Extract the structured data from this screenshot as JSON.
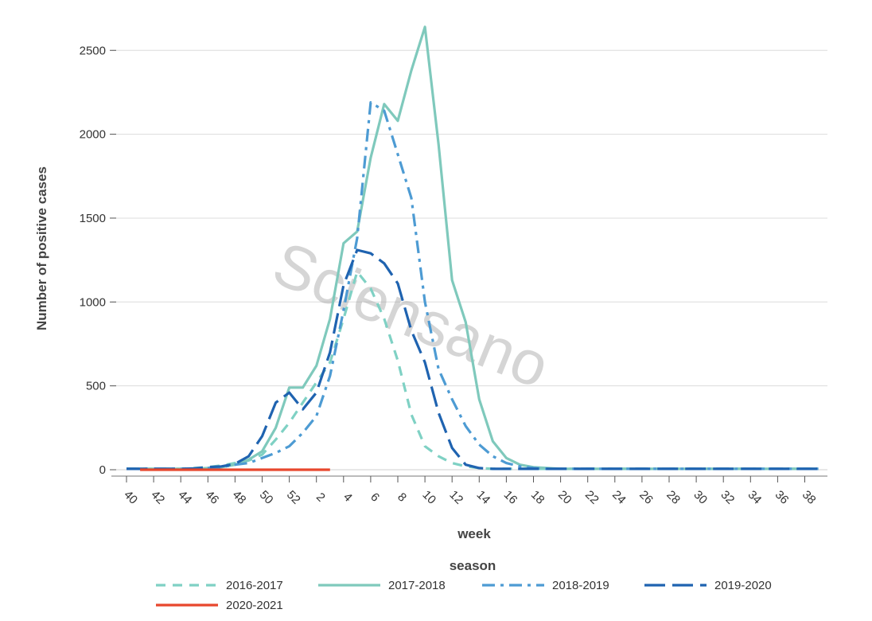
{
  "chart_data": {
    "type": "line",
    "xlabel": "week",
    "ylabel": "Number of positive cases",
    "legend_title": "season",
    "legend_position": "bottom",
    "grid": true,
    "watermark": "Sciensano",
    "ylim": [
      0,
      2500
    ],
    "y_ticks": [
      0,
      500,
      1000,
      1500,
      2000,
      2500
    ],
    "x_ticks": [
      "40",
      "42",
      "44",
      "46",
      "48",
      "50",
      "52",
      "2",
      "4",
      "6",
      "8",
      "10",
      "12",
      "14",
      "16",
      "18",
      "20",
      "22",
      "24",
      "26",
      "28",
      "30",
      "32",
      "34",
      "36",
      "38"
    ],
    "weeks": [
      "40",
      "41",
      "42",
      "43",
      "44",
      "45",
      "46",
      "47",
      "48",
      "49",
      "50",
      "51",
      "52",
      "1",
      "2",
      "3",
      "4",
      "5",
      "6",
      "7",
      "8",
      "9",
      "10",
      "11",
      "12",
      "13",
      "14",
      "15",
      "16",
      "17",
      "18",
      "19",
      "20",
      "21",
      "22",
      "23",
      "24",
      "25",
      "26",
      "27",
      "28",
      "29",
      "30",
      "31",
      "32",
      "33",
      "34",
      "35",
      "36",
      "37",
      "38",
      "39"
    ],
    "series": [
      {
        "name": "2016-2017",
        "color": "#7fd1c4",
        "dash": "short-dash",
        "values": [
          5,
          5,
          5,
          5,
          5,
          10,
          15,
          25,
          40,
          55,
          90,
          180,
          280,
          400,
          520,
          640,
          900,
          1180,
          1080,
          900,
          650,
          330,
          140,
          80,
          40,
          20,
          10,
          5,
          5,
          5,
          5,
          5,
          5,
          5,
          5,
          5,
          5,
          5,
          5,
          5,
          5,
          5,
          5,
          5,
          5,
          5,
          5,
          5,
          5,
          5,
          5,
          5
        ]
      },
      {
        "name": "2017-2018",
        "color": "#7fc9bc",
        "dash": "solid",
        "values": [
          5,
          5,
          5,
          5,
          5,
          5,
          10,
          15,
          30,
          60,
          110,
          250,
          490,
          490,
          620,
          900,
          1350,
          1420,
          1860,
          2180,
          2080,
          2380,
          2640,
          1940,
          1130,
          880,
          420,
          170,
          70,
          30,
          15,
          10,
          5,
          5,
          5,
          5,
          5,
          5,
          5,
          5,
          5,
          5,
          5,
          5,
          5,
          5,
          5,
          5,
          5,
          5,
          5,
          5
        ]
      },
      {
        "name": "2018-2019",
        "color": "#4d9bd3",
        "dash": "dash-dot",
        "values": [
          5,
          5,
          5,
          5,
          5,
          5,
          10,
          15,
          30,
          40,
          70,
          100,
          140,
          220,
          320,
          560,
          950,
          1380,
          2190,
          2140,
          1880,
          1620,
          1000,
          600,
          420,
          260,
          150,
          80,
          40,
          20,
          10,
          5,
          5,
          5,
          5,
          5,
          5,
          5,
          5,
          5,
          5,
          5,
          5,
          5,
          5,
          5,
          5,
          5,
          5,
          5,
          5,
          5
        ]
      },
      {
        "name": "2019-2020",
        "color": "#1f63b0",
        "dash": "long-dash",
        "values": [
          5,
          5,
          5,
          5,
          5,
          8,
          15,
          20,
          35,
          80,
          200,
          400,
          460,
          360,
          460,
          700,
          1100,
          1310,
          1290,
          1230,
          1110,
          830,
          640,
          340,
          130,
          30,
          10,
          5,
          5,
          5,
          5,
          5,
          5,
          5,
          5,
          5,
          5,
          5,
          5,
          5,
          5,
          5,
          5,
          5,
          5,
          5,
          5,
          5,
          5,
          5,
          5,
          5
        ]
      },
      {
        "name": "2020-2021",
        "color": "#e8472d",
        "dash": "solid",
        "values": [
          null,
          0,
          0,
          0,
          0,
          0,
          0,
          0,
          0,
          0,
          0,
          0,
          0,
          0,
          0,
          0
        ]
      }
    ]
  }
}
